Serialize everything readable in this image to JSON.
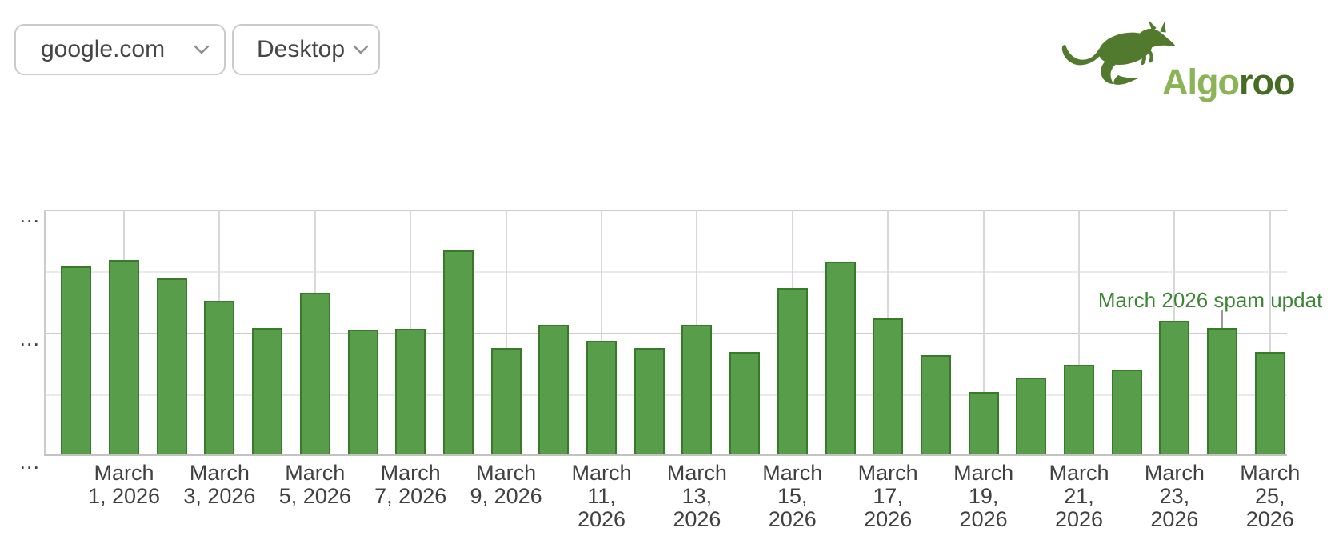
{
  "page": {
    "background": "#ffffff"
  },
  "controls": {
    "site_select": {
      "value": "google.com"
    },
    "device_select": {
      "value": "Desktop"
    }
  },
  "logo": {
    "brand_light": "Algo",
    "brand_dark": "roo",
    "kangaroo_color": "#527a2e",
    "light_color": "#8ab455",
    "dark_color": "#456c24"
  },
  "chart_data": {
    "type": "bar",
    "title": "",
    "xlabel": "",
    "ylabel": "",
    "legend": "none",
    "grid": true,
    "y_axis_note": "y-axis tick labels are truncated and render as '...'",
    "y_tick_labels": [
      "...",
      "...",
      "..."
    ],
    "values_unit": "relative bar height, % of plot area height (actual values hidden)",
    "categories": [
      "February 28, 2026",
      "March 1, 2026",
      "March 2, 2026",
      "March 3, 2026",
      "March 4, 2026",
      "March 5, 2026",
      "March 6, 2026",
      "March 7, 2026",
      "March 8, 2026",
      "March 9, 2026",
      "March 10, 2026",
      "March 11, 2026",
      "March 12, 2026",
      "March 13, 2026",
      "March 14, 2026",
      "March 15, 2026",
      "March 16, 2026",
      "March 17, 2026",
      "March 18, 2026",
      "March 19, 2026",
      "March 20, 2026",
      "March 21, 2026",
      "March 22, 2026",
      "March 23, 2026",
      "March 24, 2026",
      "March 25, 2026"
    ],
    "values": [
      76.8,
      79.5,
      71.8,
      62.8,
      51.7,
      66.0,
      51.1,
      51.2,
      83.4,
      43.6,
      52.8,
      46.3,
      43.6,
      52.8,
      41.7,
      68.0,
      78.7,
      55.4,
      40.4,
      25.4,
      31.4,
      36.6,
      34.6,
      54.6,
      51.6,
      41.9
    ],
    "x_tick_labels": [
      {
        "day": 1,
        "label": "March 1, 2026",
        "lines": [
          "March",
          "1, 2026"
        ]
      },
      {
        "day": 3,
        "label": "March 3, 2026",
        "lines": [
          "March",
          "3, 2026"
        ]
      },
      {
        "day": 5,
        "label": "March 5, 2026",
        "lines": [
          "March",
          "5, 2026"
        ]
      },
      {
        "day": 7,
        "label": "March 7, 2026",
        "lines": [
          "March",
          "7, 2026"
        ]
      },
      {
        "day": 9,
        "label": "March 9, 2026",
        "lines": [
          "March",
          "9, 2026"
        ]
      },
      {
        "day": 11,
        "label": "March 11, 2026",
        "lines": [
          "March",
          "11,",
          "2026"
        ]
      },
      {
        "day": 13,
        "label": "March 13, 2026",
        "lines": [
          "March",
          "13,",
          "2026"
        ]
      },
      {
        "day": 15,
        "label": "March 15, 2026",
        "lines": [
          "March",
          "15,",
          "2026"
        ]
      },
      {
        "day": 17,
        "label": "March 17, 2026",
        "lines": [
          "March",
          "17,",
          "2026"
        ]
      },
      {
        "day": 19,
        "label": "March 19, 2026",
        "lines": [
          "March",
          "19,",
          "2026"
        ]
      },
      {
        "day": 21,
        "label": "March 21, 2026",
        "lines": [
          "March",
          "21,",
          "2026"
        ]
      },
      {
        "day": 23,
        "label": "March 23, 2026",
        "lines": [
          "March",
          "23,",
          "2026"
        ]
      },
      {
        "day": 25,
        "label": "March 25, 2026",
        "lines": [
          "March",
          "25,",
          "2026"
        ]
      }
    ],
    "annotation": {
      "text": "March 2026 spam updat",
      "category": "March 24, 2026"
    },
    "colors": {
      "bar_fill": "#589d4a",
      "bar_stroke": "#38792a",
      "annotation_text": "#3f8538",
      "axis_label": "#404040"
    }
  }
}
